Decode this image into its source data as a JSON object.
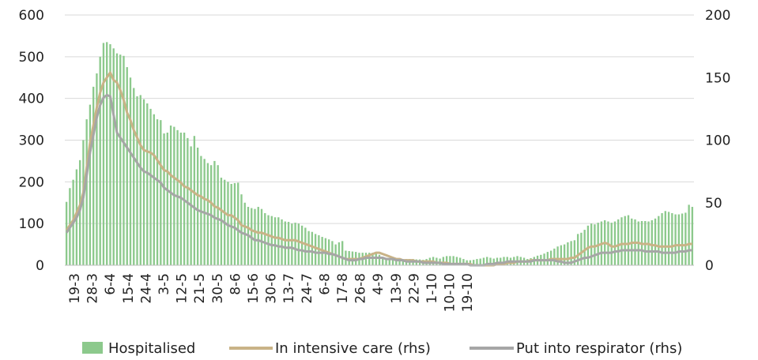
{
  "chart_data": {
    "type": "bar",
    "colors": {
      "hospitalised": "#8cc98c",
      "intensive_care": "#c9b387",
      "respirator": "#a6a6a6",
      "grid": "#d9d9d9",
      "text": "#222222"
    },
    "x_tick_labels": [
      "19-3",
      "28-3",
      "6-4",
      "15-4",
      "24-4",
      "3-5",
      "12-5",
      "21-5",
      "30-5",
      "8-6",
      "15-6",
      "30-6",
      "13-7",
      "24-7",
      "6-8",
      "17-8",
      "26-8",
      "4-9",
      "13-9",
      "22-9",
      "1-10",
      "10-10",
      "19-10"
    ],
    "y_left": {
      "ylim": [
        0,
        600
      ],
      "ticks": [
        "0",
        "100",
        "200",
        "300",
        "400",
        "500",
        "600"
      ]
    },
    "y_right": {
      "ylim": [
        0,
        200
      ],
      "ticks": [
        "0",
        "50",
        "100",
        "150",
        "200"
      ]
    },
    "grid": true,
    "legend_placement": "bottom",
    "series": [
      {
        "name": "Hospitalised",
        "type": "bar",
        "axis": "left",
        "values": [
          152,
          185,
          205,
          230,
          252,
          300,
          350,
          385,
          428,
          460,
          500,
          533,
          535,
          530,
          520,
          508,
          505,
          502,
          475,
          450,
          425,
          405,
          408,
          398,
          388,
          375,
          362,
          350,
          348,
          316,
          318,
          335,
          332,
          324,
          318,
          318,
          305,
          285,
          310,
          282,
          262,
          255,
          245,
          240,
          250,
          240,
          210,
          205,
          200,
          195,
          197,
          198,
          170,
          150,
          140,
          137,
          135,
          140,
          135,
          125,
          120,
          118,
          115,
          115,
          110,
          105,
          104,
          100,
          102,
          100,
          95,
          90,
          82,
          80,
          75,
          72,
          68,
          65,
          62,
          58,
          50,
          55,
          58,
          35,
          34,
          33,
          32,
          30,
          30,
          30,
          30,
          30,
          28,
          25,
          20,
          18,
          16,
          15,
          15,
          15,
          13,
          15,
          15,
          15,
          14,
          14,
          13,
          15,
          18,
          20,
          18,
          16,
          20,
          22,
          22,
          22,
          20,
          18,
          15,
          12,
          12,
          13,
          15,
          16,
          18,
          20,
          18,
          16,
          18,
          18,
          20,
          20,
          18,
          20,
          22,
          20,
          18,
          15,
          17,
          20,
          23,
          25,
          28,
          32,
          35,
          40,
          45,
          48,
          50,
          55,
          58,
          60,
          75,
          78,
          85,
          95,
          100,
          98,
          102,
          105,
          108,
          105,
          102,
          105,
          110,
          115,
          118,
          120,
          112,
          110,
          105,
          106,
          106,
          105,
          108,
          112,
          118,
          125,
          130,
          128,
          125,
          122,
          122,
          124,
          126,
          145,
          140
        ]
      },
      {
        "name": "In intensive care (rhs)",
        "type": "line",
        "axis": "right",
        "values": [
          28,
          32,
          36,
          42,
          48,
          58,
          78,
          98,
          112,
          126,
          138,
          146,
          150,
          154,
          148,
          146,
          140,
          132,
          122,
          116,
          108,
          102,
          96,
          92,
          91,
          90,
          88,
          84,
          80,
          76,
          75,
          72,
          70,
          68,
          66,
          63,
          62,
          60,
          58,
          56,
          55,
          53,
          52,
          50,
          47,
          46,
          44,
          42,
          40,
          40,
          38,
          36,
          32,
          31,
          30,
          28,
          27,
          26,
          26,
          25,
          24,
          23,
          22,
          22,
          21,
          20,
          20,
          20,
          20,
          19,
          18,
          17,
          16,
          15,
          14,
          13,
          12,
          11,
          10,
          9,
          8,
          7,
          6,
          5,
          5,
          5,
          5,
          5,
          6,
          7,
          8,
          9,
          10,
          10,
          9,
          8,
          7,
          6,
          5,
          5,
          4,
          4,
          4,
          4,
          3,
          3,
          3,
          3,
          3,
          3,
          2,
          2,
          2,
          2,
          1,
          1,
          1,
          1,
          1,
          1,
          1,
          0,
          0,
          0,
          0,
          0,
          0,
          0,
          1,
          1,
          1,
          2,
          2,
          2,
          3,
          3,
          3,
          3,
          4,
          4,
          4,
          4,
          4,
          4,
          5,
          5,
          5,
          5,
          5,
          5,
          6,
          6,
          8,
          10,
          12,
          14,
          15,
          15,
          16,
          17,
          18,
          17,
          15,
          15,
          16,
          17,
          17,
          17,
          18,
          18,
          18,
          17,
          17,
          17,
          16,
          16,
          15,
          15,
          15,
          15,
          15,
          16,
          16,
          16,
          16,
          17,
          17
        ]
      },
      {
        "name": "Put into respirator (rhs)",
        "type": "line",
        "axis": "right",
        "values": [
          26,
          30,
          34,
          38,
          44,
          54,
          72,
          90,
          104,
          118,
          128,
          134,
          136,
          135,
          120,
          106,
          102,
          98,
          94,
          90,
          86,
          82,
          78,
          75,
          74,
          72,
          70,
          68,
          66,
          62,
          60,
          58,
          56,
          55,
          54,
          52,
          50,
          48,
          46,
          44,
          43,
          42,
          41,
          40,
          38,
          37,
          36,
          34,
          32,
          31,
          30,
          28,
          26,
          25,
          24,
          22,
          20,
          20,
          19,
          18,
          17,
          16,
          16,
          15,
          15,
          14,
          14,
          14,
          13,
          12,
          12,
          11,
          11,
          11,
          10,
          10,
          10,
          10,
          9,
          9,
          8,
          7,
          6,
          5,
          4,
          4,
          4,
          5,
          5,
          6,
          6,
          6,
          6,
          6,
          6,
          5,
          5,
          5,
          4,
          4,
          4,
          3,
          3,
          3,
          3,
          3,
          2,
          2,
          2,
          2,
          2,
          2,
          1,
          1,
          1,
          1,
          1,
          1,
          1,
          1,
          0,
          0,
          0,
          0,
          0,
          1,
          1,
          1,
          2,
          2,
          2,
          3,
          3,
          3,
          3,
          3,
          3,
          3,
          3,
          4,
          4,
          4,
          4,
          4,
          4,
          4,
          3,
          3,
          2,
          2,
          2,
          3,
          4,
          5,
          6,
          6,
          7,
          8,
          9,
          10,
          10,
          10,
          10,
          11,
          11,
          12,
          12,
          12,
          12,
          12,
          12,
          12,
          11,
          11,
          11,
          11,
          11,
          10,
          10,
          10,
          10,
          10,
          11,
          11,
          11,
          12,
          12
        ]
      }
    ]
  }
}
